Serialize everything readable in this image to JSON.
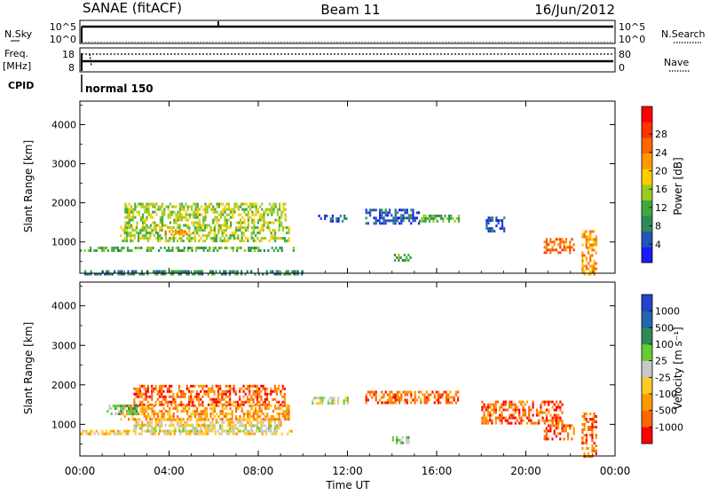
{
  "header": {
    "station": "SANAE (fitACF)",
    "beam": "Beam 11",
    "date": "16/Jun/2012"
  },
  "top_panels": {
    "nsky_label": "N.Sky",
    "nsearch_label": "N.Search",
    "freq_label": "Freq.",
    "freq_unit": "[MHz]",
    "nave_label": "Nave",
    "cpid_label": "CPID",
    "cpid_value": "normal 150",
    "noise_left_ticks": [
      "10^5",
      "10^0"
    ],
    "noise_right_ticks": [
      "10^5",
      "10^0"
    ],
    "freq_left_ticks": [
      "18",
      "8"
    ],
    "nave_right_ticks": [
      "80",
      "0"
    ]
  },
  "chart_data": [
    {
      "type": "heatmap",
      "parameter": "power",
      "ylabel": "Slant Range [km]",
      "ylim": [
        200,
        4600
      ],
      "yticks": [
        1000,
        2000,
        3000,
        4000
      ],
      "xlim": [
        0,
        24
      ],
      "colorbar": {
        "label": "Power [dB]",
        "ticks": [
          "4",
          "8",
          "12",
          "16",
          "20",
          "24",
          "28"
        ],
        "colors": [
          "#1a1aff",
          "#2255bb",
          "#2e8b57",
          "#3faa3f",
          "#99cc22",
          "#ffcc00",
          "#ff9900",
          "#ff6600",
          "#ff3300",
          "#ff0000"
        ]
      },
      "regions": [
        {
          "t0": 0.0,
          "t1": 9.6,
          "r0": 780,
          "r1": 880,
          "level": 3
        },
        {
          "t0": 0.2,
          "t1": 10.0,
          "r0": 200,
          "r1": 280,
          "level": 2
        },
        {
          "t0": 1.8,
          "t1": 9.4,
          "r0": 1000,
          "r1": 1400,
          "level": 4
        },
        {
          "t0": 2.0,
          "t1": 9.2,
          "r0": 1400,
          "r1": 2000,
          "level": 4
        },
        {
          "t0": 3.8,
          "t1": 5.2,
          "r0": 1200,
          "r1": 1300,
          "level": 6
        },
        {
          "t0": 10.6,
          "t1": 12.0,
          "r0": 1500,
          "r1": 1700,
          "level": 1
        },
        {
          "t0": 12.8,
          "t1": 15.2,
          "r0": 1500,
          "r1": 1850,
          "level": 1
        },
        {
          "t0": 15.2,
          "t1": 17.0,
          "r0": 1500,
          "r1": 1700,
          "level": 3
        },
        {
          "t0": 14.0,
          "t1": 14.8,
          "r0": 550,
          "r1": 700,
          "level": 3
        },
        {
          "t0": 18.2,
          "t1": 19.0,
          "r0": 1300,
          "r1": 1650,
          "level": 1
        },
        {
          "t0": 20.8,
          "t1": 22.2,
          "r0": 700,
          "r1": 1100,
          "level": 7
        },
        {
          "t0": 22.5,
          "t1": 23.2,
          "r0": 200,
          "r1": 1300,
          "level": 6
        }
      ]
    },
    {
      "type": "heatmap",
      "parameter": "velocity",
      "ylabel": "Slant Range [km]",
      "ylim": [
        200,
        4600
      ],
      "yticks": [
        1000,
        2000,
        3000,
        4000
      ],
      "xlim": [
        0,
        24
      ],
      "xticks": [
        "00:00",
        "04:00",
        "08:00",
        "12:00",
        "16:00",
        "20:00",
        "00:00"
      ],
      "xlabel": "Time UT",
      "colorbar": {
        "label": "Velocity [m s⁻¹]",
        "ticks": [
          "1000",
          "500",
          "100",
          "25",
          "-25",
          "-100",
          "-500",
          "-1000"
        ],
        "colors": [
          "#2244cc",
          "#2266aa",
          "#2e8b57",
          "#66cc33",
          "#c8c8c8",
          "#ffcc22",
          "#ff9900",
          "#ff6600",
          "#ff0000"
        ]
      },
      "regions": [
        {
          "t0": 0.0,
          "t1": 9.6,
          "r0": 750,
          "r1": 860,
          "level": 5
        },
        {
          "t0": 2.4,
          "t1": 9.0,
          "r0": 850,
          "r1": 1000,
          "level": 4
        },
        {
          "t0": 2.4,
          "t1": 9.0,
          "r0": 1000,
          "r1": 1150,
          "level": 5
        },
        {
          "t0": 1.8,
          "t1": 9.4,
          "r0": 1150,
          "r1": 1500,
          "level": 6
        },
        {
          "t0": 2.4,
          "t1": 9.2,
          "r0": 1500,
          "r1": 2000,
          "level": 7
        },
        {
          "t0": 1.2,
          "t1": 2.6,
          "r0": 1250,
          "r1": 1500,
          "level": 3
        },
        {
          "t0": 10.4,
          "t1": 12.0,
          "r0": 1550,
          "r1": 1700,
          "level": 4
        },
        {
          "t0": 12.8,
          "t1": 17.0,
          "r0": 1550,
          "r1": 1850,
          "level": 7
        },
        {
          "t0": 14.0,
          "t1": 14.8,
          "r0": 550,
          "r1": 700,
          "level": 3
        },
        {
          "t0": 18.0,
          "t1": 21.6,
          "r0": 1000,
          "r1": 1600,
          "level": 7
        },
        {
          "t0": 20.8,
          "t1": 22.2,
          "r0": 600,
          "r1": 1000,
          "level": 7
        },
        {
          "t0": 22.5,
          "t1": 23.2,
          "r0": 200,
          "r1": 1300,
          "level": 7
        }
      ]
    }
  ]
}
